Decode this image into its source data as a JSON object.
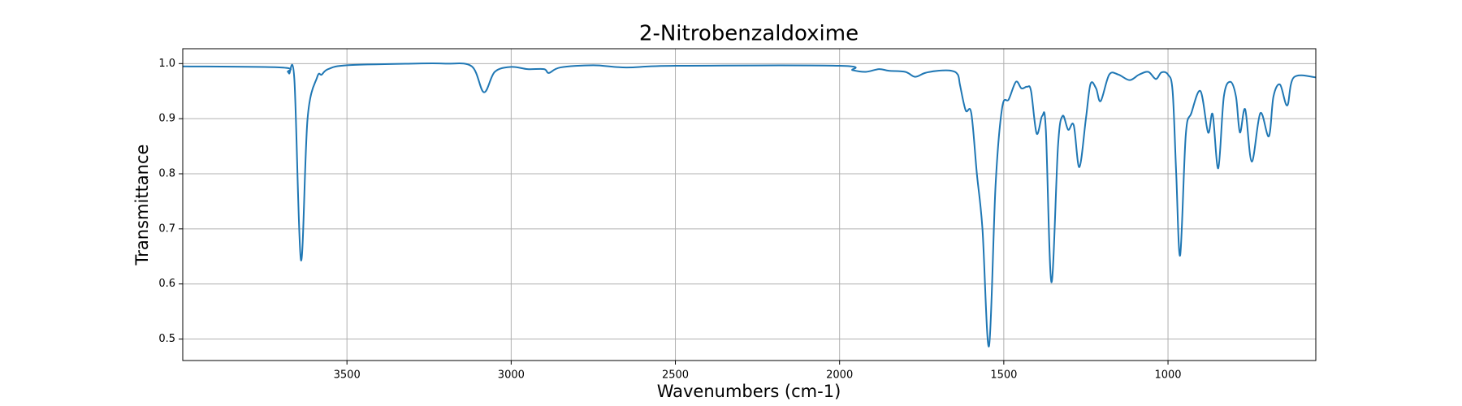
{
  "chart_data": {
    "type": "line",
    "title": "2-Nitrobenzaldoxime",
    "x_label": "Wavenumbers (cm-1)",
    "y_label": "Transmittance",
    "x": [
      4000,
      3700,
      3680,
      3676,
      3660,
      3640,
      3620,
      3591,
      3577,
      3557,
      3500,
      3300,
      3200,
      3120,
      3083,
      3050,
      3000,
      2950,
      2900,
      2885,
      2850,
      2750,
      2650,
      2500,
      2000,
      1960,
      1920,
      1880,
      1850,
      1800,
      1770,
      1740,
      1700,
      1660,
      1640,
      1633,
      1616,
      1599,
      1582,
      1565,
      1545,
      1525,
      1505,
      1485,
      1463,
      1446,
      1429,
      1417,
      1400,
      1383,
      1372,
      1355,
      1335,
      1321,
      1304,
      1287,
      1270,
      1250,
      1236,
      1219,
      1205,
      1179,
      1151,
      1117,
      1088,
      1060,
      1037,
      1020,
      1000,
      986,
      975,
      963,
      946,
      929,
      901,
      878,
      864,
      847,
      830,
      810,
      793,
      781,
      765,
      745,
      719,
      693,
      679,
      659,
      637,
      617,
      550
    ],
    "series": [
      {
        "name": "2-Nitrobenzaldoxime",
        "color": "#1f77b4",
        "values": [
          0.995,
          0.993,
          0.985,
          0.982,
          0.97,
          0.643,
          0.9,
          0.975,
          0.98,
          0.99,
          0.997,
          1.0,
          1.0,
          0.995,
          0.948,
          0.985,
          0.994,
          0.99,
          0.99,
          0.983,
          0.993,
          0.997,
          0.993,
          0.996,
          0.996,
          0.988,
          0.985,
          0.99,
          0.987,
          0.985,
          0.976,
          0.983,
          0.987,
          0.987,
          0.98,
          0.96,
          0.915,
          0.91,
          0.8,
          0.7,
          0.487,
          0.78,
          0.92,
          0.935,
          0.967,
          0.955,
          0.958,
          0.95,
          0.873,
          0.905,
          0.88,
          0.603,
          0.85,
          0.905,
          0.88,
          0.888,
          0.812,
          0.9,
          0.963,
          0.955,
          0.932,
          0.98,
          0.98,
          0.97,
          0.98,
          0.985,
          0.972,
          0.984,
          0.98,
          0.95,
          0.8,
          0.652,
          0.87,
          0.91,
          0.95,
          0.875,
          0.908,
          0.81,
          0.94,
          0.967,
          0.94,
          0.875,
          0.917,
          0.822,
          0.91,
          0.868,
          0.94,
          0.962,
          0.924,
          0.975,
          0.975
        ]
      }
    ],
    "xlim": [
      4000,
      550
    ],
    "ylim": [
      0.461,
      1.027
    ],
    "xticks": [
      3500,
      3000,
      2500,
      2000,
      1500,
      1000
    ],
    "yticks": [
      0.5,
      0.6,
      0.7,
      0.8,
      0.9,
      {
        "value": 1,
        "label": "1.0"
      }
    ],
    "grid": true
  }
}
